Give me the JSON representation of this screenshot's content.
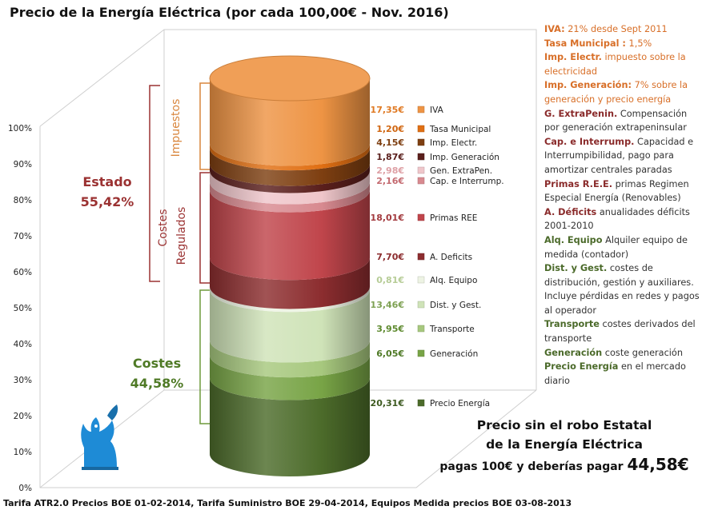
{
  "title": "Precio de la Energía Eléctrica (por cada 100,00€ - Nov. 2016)",
  "footer": "Tarifa ATR2.0 Precios BOE 01-02-2014, Tarifa Suministro BOE 29-04-2014, Equipos Medida precios BOE 03-08-2013",
  "chart_data": {
    "type": "bar",
    "subtype": "stacked-100-percent-3d-cylinder",
    "y_ticks": [
      "0%",
      "10%",
      "20%",
      "30%",
      "40%",
      "50%",
      "60%",
      "70%",
      "80%",
      "90%",
      "100%"
    ],
    "ylim": [
      0,
      100
    ],
    "series": [
      {
        "name": "Precio Energía",
        "value": 20.31,
        "label": "20,31€",
        "color": "#4c6b2a",
        "value_color": "#3d5a20"
      },
      {
        "name": "Generación",
        "value": 6.05,
        "label": "6,05€",
        "color": "#78a446",
        "value_color": "#4f7a26"
      },
      {
        "name": "Transporte",
        "value": 3.95,
        "label": "3,95€",
        "color": "#a7c87e",
        "value_color": "#5e8a2f"
      },
      {
        "name": "Dist. y Gest.",
        "value": 13.46,
        "label": "13,46€",
        "color": "#cfe3b8",
        "value_color": "#7ea153"
      },
      {
        "name": "Alq. Equipo",
        "value": 0.81,
        "label": "0,81€",
        "color": "#edf3e3",
        "value_color": "#b6cc96"
      },
      {
        "name": "A. Deficits",
        "value": 7.7,
        "label": "7,70€",
        "color": "#8c2d2f",
        "value_color": "#8c2d2f"
      },
      {
        "name": "Primas REE",
        "value": 18.01,
        "label": "18,01€",
        "color": "#c0454b",
        "value_color": "#a33a3e"
      },
      {
        "name": "Cap. e Interrump.",
        "value": 2.16,
        "label": "2,16€",
        "color": "#d88a90",
        "value_color": "#c46a70"
      },
      {
        "name": "Gen. ExtraPen.",
        "value": 2.98,
        "label": "2,98€",
        "color": "#efc6ca",
        "value_color": "#dea0a5"
      },
      {
        "name": "Imp. Generación",
        "value": 1.87,
        "label": "1,87€",
        "color": "#5a1f1c",
        "value_color": "#5a1f1c"
      },
      {
        "name": "Imp. Electr.",
        "value": 4.15,
        "label": "4,15€",
        "color": "#7e3f11",
        "value_color": "#7e3f11"
      },
      {
        "name": "Tasa Municipal",
        "value": 1.2,
        "label": "1,20€",
        "color": "#e06f13",
        "value_color": "#d0650f"
      },
      {
        "name": "IVA",
        "value": 17.35,
        "label": "17,35€",
        "color": "#ee9444",
        "value_color": "#e07a23"
      }
    ],
    "groups": {
      "estado": {
        "label": "Estado",
        "pct": "55,42%",
        "color": "#9b3232"
      },
      "costes": {
        "label": "Costes",
        "pct": "44,58%",
        "color": "#4f7a26"
      },
      "impuestos": {
        "label": "Impuestos",
        "color": "#d9863d"
      },
      "costes_regulados": {
        "line1": "Costes",
        "line2": "Regulados",
        "color": "#9b3232"
      }
    }
  },
  "notes": [
    {
      "tone": "top",
      "key": "IVA:",
      "text": " 21% desde Sept 2011"
    },
    {
      "tone": "top",
      "key": "Tasa Municipal :",
      "text": " 1,5%"
    },
    {
      "tone": "top",
      "key": "Imp. Electr.",
      "text": "  impuesto sobre la electricidad"
    },
    {
      "tone": "top",
      "key": "Imp. Generación:",
      "text": " 7%  sobre la generación y precio energía"
    },
    {
      "tone": "mid",
      "key": "G. ExtraPenin.",
      "text": " Compensación por generación extrapeninsular"
    },
    {
      "tone": "mid",
      "key": "Cap. e Interrump.",
      "text": " Capacidad e Interrumpibilidad, pago para amortizar centrales paradas"
    },
    {
      "tone": "mid",
      "key": "Primas R.E.E.",
      "text": " primas Regimen Especial Energía (Renovables)"
    },
    {
      "tone": "mid",
      "key": "A. Déficits",
      "text": " anualidades déficits 2001-2010"
    },
    {
      "tone": "low",
      "key": "Alq. Equipo",
      "text": " Alquiler equipo de medida (contador)"
    },
    {
      "tone": "low",
      "key": "Dist. y Gest.",
      "text": " costes de distribución, gestión y auxiliares. Incluye pérdidas en redes y pagos al operador"
    },
    {
      "tone": "low",
      "key": "Transporte",
      "text": " costes derivados del transporte"
    },
    {
      "tone": "low",
      "key": "Generación",
      "text": " coste generación"
    },
    {
      "tone": "low",
      "key": "Precio Energía",
      "text": " en el mercado diario"
    }
  ],
  "slogan": {
    "line1": "Precio sin el robo Estatal",
    "line2": "de la Energía Eléctrica",
    "line3a": "pagas 100€ y deberías pagar",
    "line3b": "44,58€"
  },
  "logo": {
    "icon": "griffin-icon",
    "color": "#1e8bd6"
  }
}
